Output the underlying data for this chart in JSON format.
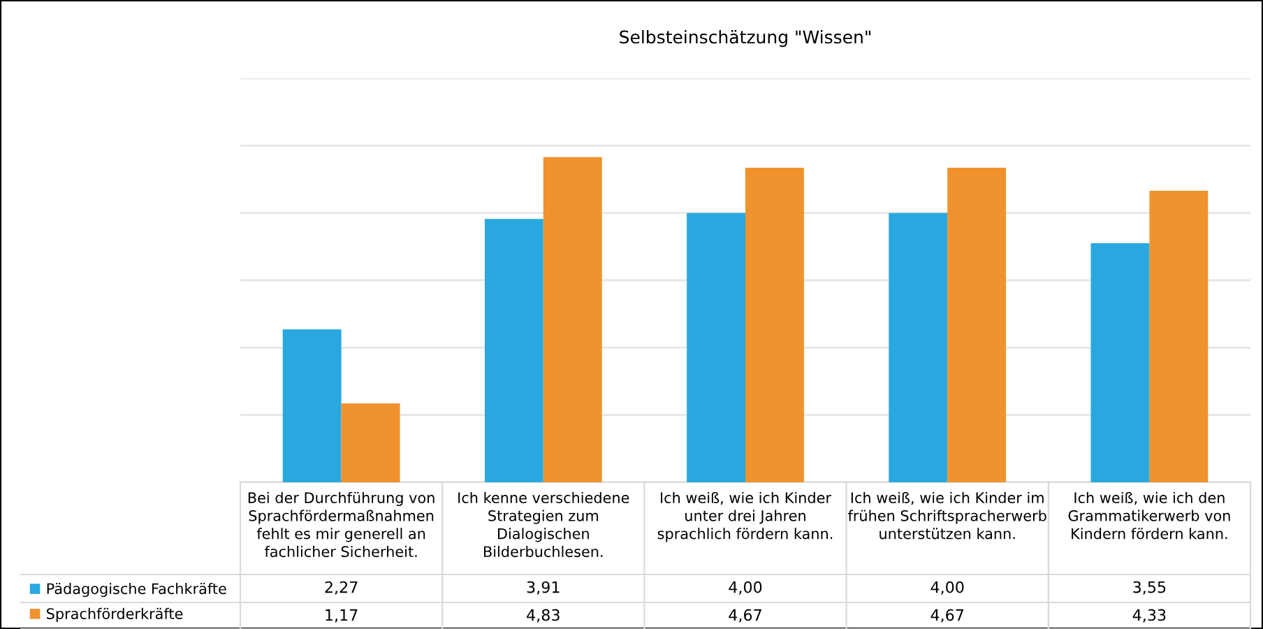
{
  "chart_data": {
    "type": "bar",
    "title": "Selbsteinschätzung \"Wissen\"",
    "categories": [
      "Bei der Durchführung von\nSprachfördermaßnahmen\nfehlt es mir generell an\nfachlicher Sicherheit.",
      "Ich kenne verschiedene\nStrategien zum\nDialogischen\nBilderbuchlesen.",
      "Ich weiß, wie ich Kinder\nunter drei Jahren\nsprachlich fördern kann.",
      "Ich weiß, wie ich Kinder im\nfrühen Schriftspracherwerb\nunterstützen kann.",
      "Ich weiß, wie ich den\nGrammatikerwerb von\nKindern fördern kann."
    ],
    "series": [
      {
        "name": "Pädagogische Fachkräfte",
        "color": "#29a8e0",
        "values": [
          2.27,
          3.91,
          4.0,
          4.0,
          3.55
        ],
        "value_labels": [
          "2,27",
          "3,91",
          "4,00",
          "4,00",
          "3,55"
        ]
      },
      {
        "name": "Sprachförderkräfte",
        "color": "#f0922e",
        "values": [
          1.17,
          4.83,
          4.67,
          4.67,
          4.33
        ],
        "value_labels": [
          "1,17",
          "4,83",
          "4,67",
          "4,67",
          "4,33"
        ]
      }
    ],
    "ylim": [
      0,
      6
    ],
    "yticks": [
      {
        "value": 0,
        "label": null
      },
      {
        "value": 1,
        "label": null
      },
      {
        "value": 2,
        "label": null
      },
      {
        "value": 3,
        "label": null
      },
      {
        "value": 4,
        "label": null
      },
      {
        "value": 5,
        "label": null
      },
      {
        "value": 6,
        "label": null
      }
    ],
    "grid": "y",
    "legend": "bottom left",
    "tick_labels": "x"
  }
}
